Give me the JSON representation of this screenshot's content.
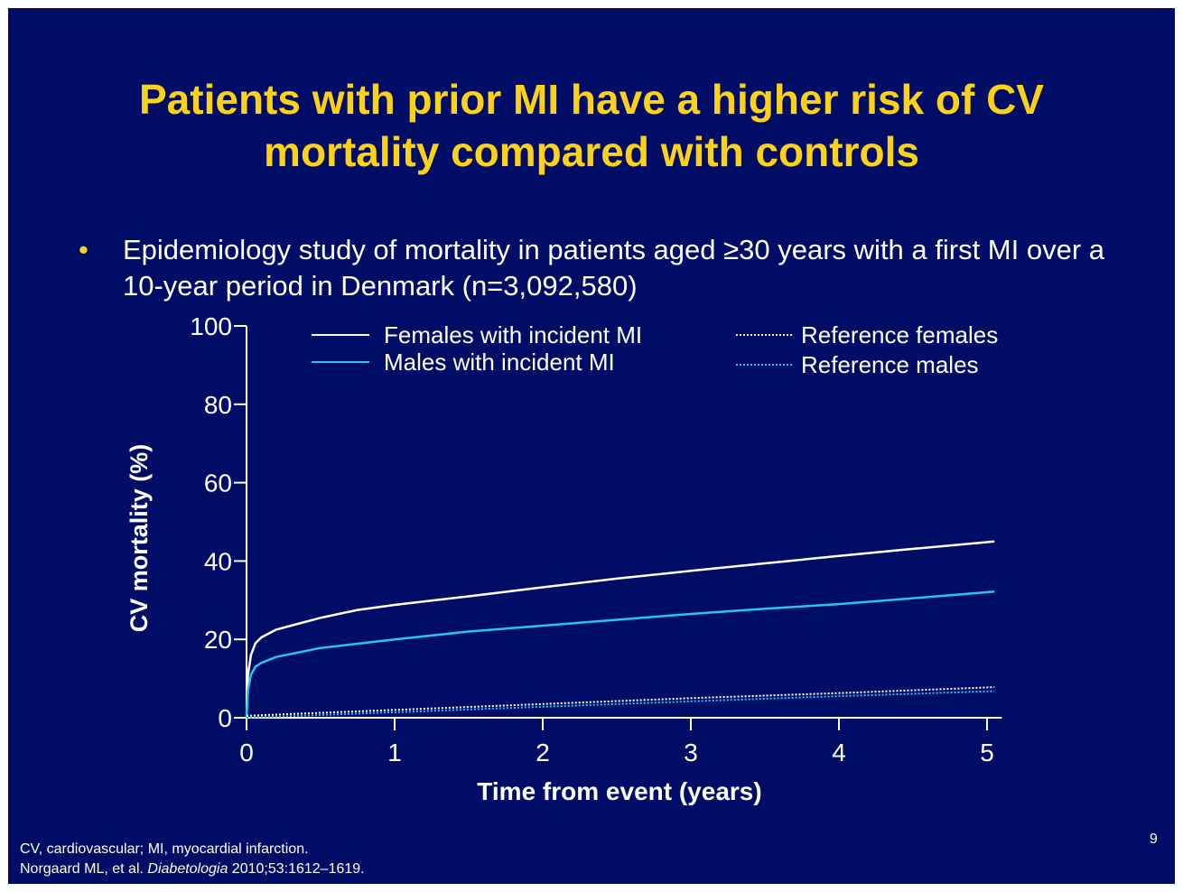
{
  "slide": {
    "title_line1": "Patients with prior MI have a higher risk of CV",
    "title_line2": "mortality compared with controls",
    "bullet_marker": "•",
    "bullet_text": "Epidemiology study of mortality in patients aged ≥30 years with a first MI over a 10-year period in Denmark (n=3,092,580)",
    "footnote_line1": "CV, cardiovascular; MI, myocardial infarction.",
    "footnote_line2_author": "Norgaard ML, et al. ",
    "footnote_line2_journal": "Diabetologia",
    "footnote_line2_ref": " 2010;53:1612–1619.",
    "page_number": "9",
    "colors": {
      "background": "#000d66",
      "title": "#fcd116",
      "text": "#ffffff"
    }
  },
  "chart_data": {
    "type": "line",
    "title": "",
    "xlabel": "Time from event (years)",
    "ylabel": "CV mortality (%)",
    "xlim": [
      0,
      5.1
    ],
    "ylim": [
      0,
      100
    ],
    "x_ticks": [
      "0",
      "1",
      "2",
      "3",
      "4",
      "5"
    ],
    "y_ticks": [
      "0",
      "20",
      "40",
      "60",
      "80",
      "100"
    ],
    "grid": false,
    "legend_position": "top",
    "series": [
      {
        "name": "Females with incident MI",
        "style": "solid",
        "color": "#ffffff",
        "points": [
          [
            0,
            0
          ],
          [
            0.01,
            11
          ],
          [
            0.03,
            16
          ],
          [
            0.06,
            19
          ],
          [
            0.1,
            20.5
          ],
          [
            0.2,
            22.5
          ],
          [
            0.3,
            23.5
          ],
          [
            0.5,
            25.5
          ],
          [
            0.75,
            27.5
          ],
          [
            1,
            28.8
          ],
          [
            1.5,
            31
          ],
          [
            2,
            33.3
          ],
          [
            2.5,
            35.5
          ],
          [
            3,
            37.5
          ],
          [
            3.5,
            39.4
          ],
          [
            4,
            41.3
          ],
          [
            4.5,
            43.1
          ],
          [
            5.05,
            45
          ]
        ]
      },
      {
        "name": "Males with incident MI",
        "style": "solid",
        "color": "#29c3f0",
        "points": [
          [
            0,
            0
          ],
          [
            0.01,
            7
          ],
          [
            0.03,
            11
          ],
          [
            0.06,
            13
          ],
          [
            0.1,
            14
          ],
          [
            0.2,
            15.5
          ],
          [
            0.3,
            16.3
          ],
          [
            0.5,
            17.8
          ],
          [
            0.75,
            18.9
          ],
          [
            1,
            20
          ],
          [
            1.5,
            22
          ],
          [
            2,
            23.5
          ],
          [
            2.5,
            25
          ],
          [
            3,
            26.5
          ],
          [
            3.5,
            27.8
          ],
          [
            4,
            29
          ],
          [
            4.5,
            30.5
          ],
          [
            5.05,
            32.2
          ]
        ]
      },
      {
        "name": "Reference females",
        "style": "dotted",
        "color": "#ffffff",
        "points": [
          [
            0,
            0.5
          ],
          [
            1,
            2
          ],
          [
            2,
            3.5
          ],
          [
            3,
            5
          ],
          [
            4,
            6.3
          ],
          [
            5.05,
            7.8
          ]
        ]
      },
      {
        "name": "Reference males",
        "style": "dotted",
        "color": "#29c3f0",
        "points": [
          [
            0,
            0
          ],
          [
            1,
            1.4
          ],
          [
            2,
            2.8
          ],
          [
            3,
            4.2
          ],
          [
            4,
            5.5
          ],
          [
            5.05,
            6.8
          ]
        ]
      }
    ]
  }
}
